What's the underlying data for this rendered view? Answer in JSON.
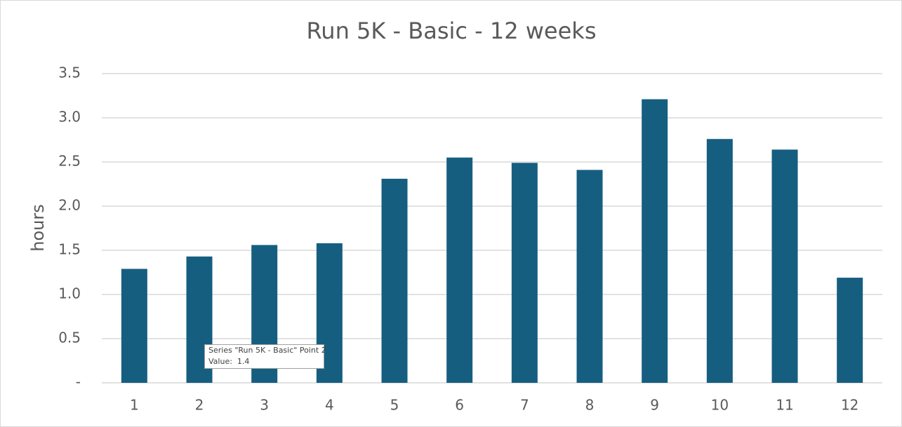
{
  "chart_data": {
    "type": "bar",
    "title": "Run 5K - Basic - 12 weeks",
    "y_label": "hours",
    "series_name": "Run 5K - Basic",
    "categories": [
      "1",
      "2",
      "3",
      "4",
      "5",
      "6",
      "7",
      "8",
      "9",
      "10",
      "11",
      "12"
    ],
    "values": [
      1.29,
      1.43,
      1.56,
      1.58,
      2.31,
      2.55,
      2.49,
      2.41,
      3.21,
      2.76,
      2.64,
      1.19
    ],
    "color": "#165e80",
    "ylim": [
      0,
      3.5
    ],
    "yticks": [
      {
        "value": 0,
        "label": "-"
      },
      0.5,
      {
        "value": 1,
        "label": "1.0"
      },
      1.5,
      {
        "value": 2,
        "label": "2.0"
      },
      2.5,
      {
        "value": 3,
        "label": "3.0"
      },
      3.5
    ],
    "grid": true,
    "tooltip": {
      "line1": "Series \"Run 5K - Basic\" Point 2",
      "line2": "Value:  1.4"
    }
  }
}
